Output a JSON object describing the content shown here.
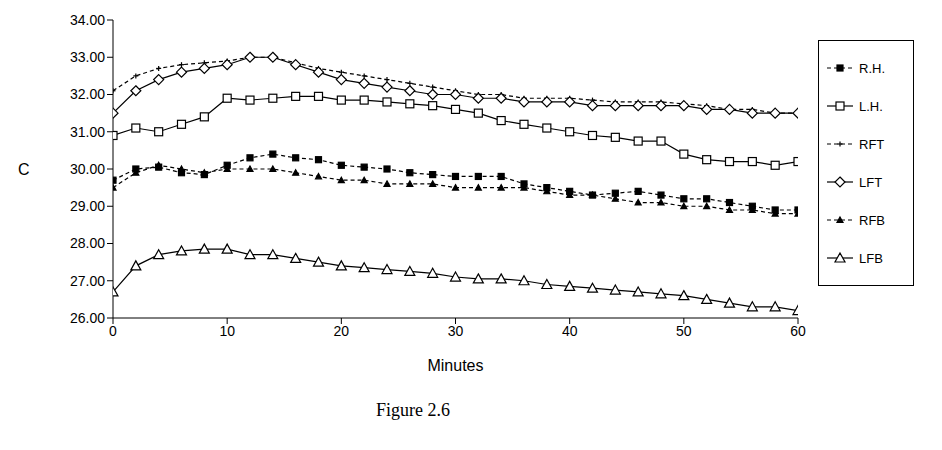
{
  "chart_data": {
    "type": "line",
    "title": "Figure 2.6",
    "x_label": "Minutes",
    "y_label": "C",
    "x": [
      0,
      2,
      4,
      6,
      8,
      10,
      12,
      14,
      16,
      18,
      20,
      22,
      24,
      26,
      28,
      30,
      32,
      34,
      36,
      38,
      40,
      42,
      44,
      46,
      48,
      50,
      52,
      54,
      56,
      58,
      60
    ],
    "xlim": [
      0,
      60
    ],
    "xticks": [
      0,
      10,
      20,
      30,
      40,
      50,
      60
    ],
    "ylim": [
      26,
      34
    ],
    "yticks": [
      {
        "value": 26,
        "label": "26.00"
      },
      {
        "value": 27,
        "label": "27.00"
      },
      {
        "value": 28,
        "label": "28.00"
      },
      {
        "value": 29,
        "label": "29.00"
      },
      {
        "value": 30,
        "label": "30.00"
      },
      {
        "value": 31,
        "label": "31.00"
      },
      {
        "value": 32,
        "label": "32.00"
      },
      {
        "value": 33,
        "label": "33.00"
      },
      {
        "value": 34,
        "label": "34.00"
      }
    ],
    "grid": false,
    "legend": "right",
    "series": [
      {
        "name": "R.H.",
        "color": "#000000",
        "marker": "filled_square",
        "line_style": "dashed",
        "values": [
          29.7,
          30.0,
          30.05,
          29.9,
          29.85,
          30.1,
          30.3,
          30.4,
          30.3,
          30.25,
          30.1,
          30.05,
          30.0,
          29.9,
          29.85,
          29.8,
          29.8,
          29.8,
          29.6,
          29.5,
          29.4,
          29.3,
          29.35,
          29.4,
          29.3,
          29.2,
          29.2,
          29.1,
          29.0,
          28.9,
          28.9
        ]
      },
      {
        "name": "L.H.",
        "color": "#000000",
        "marker": "open_square",
        "line_style": "solid",
        "values": [
          30.9,
          31.1,
          31.0,
          31.2,
          31.4,
          31.9,
          31.85,
          31.9,
          31.95,
          31.95,
          31.85,
          31.85,
          31.8,
          31.75,
          31.7,
          31.6,
          31.5,
          31.3,
          31.2,
          31.1,
          31.0,
          30.9,
          30.85,
          30.75,
          30.75,
          30.4,
          30.25,
          30.2,
          30.2,
          30.1,
          30.2
        ]
      },
      {
        "name": "RFT",
        "color": "#000000",
        "marker": "plus",
        "line_style": "dashed",
        "values": [
          32.1,
          32.5,
          32.7,
          32.8,
          32.85,
          32.9,
          33.0,
          33.0,
          32.85,
          32.7,
          32.6,
          32.5,
          32.4,
          32.3,
          32.2,
          32.1,
          32.0,
          32.0,
          31.9,
          31.9,
          31.9,
          31.85,
          31.8,
          31.8,
          31.8,
          31.75,
          31.7,
          31.6,
          31.6,
          31.5,
          31.5
        ]
      },
      {
        "name": "LFT",
        "color": "#000000",
        "marker": "open_diamond",
        "line_style": "solid",
        "values": [
          31.5,
          32.1,
          32.4,
          32.6,
          32.7,
          32.8,
          33.0,
          33.0,
          32.8,
          32.6,
          32.4,
          32.3,
          32.2,
          32.1,
          32.0,
          32.0,
          31.9,
          31.9,
          31.8,
          31.8,
          31.8,
          31.7,
          31.7,
          31.7,
          31.7,
          31.7,
          31.6,
          31.6,
          31.5,
          31.5,
          31.5
        ]
      },
      {
        "name": "RFB",
        "color": "#000000",
        "marker": "filled_triangle",
        "line_style": "dashed",
        "values": [
          29.5,
          29.9,
          30.1,
          30.0,
          29.9,
          30.0,
          30.0,
          30.0,
          29.9,
          29.8,
          29.7,
          29.7,
          29.6,
          29.6,
          29.6,
          29.5,
          29.5,
          29.5,
          29.5,
          29.4,
          29.3,
          29.3,
          29.2,
          29.1,
          29.1,
          29.0,
          29.0,
          28.9,
          28.9,
          28.8,
          28.8
        ]
      },
      {
        "name": "LFB",
        "color": "#000000",
        "marker": "open_triangle",
        "line_style": "solid",
        "values": [
          26.7,
          27.4,
          27.7,
          27.8,
          27.85,
          27.85,
          27.7,
          27.7,
          27.6,
          27.5,
          27.4,
          27.35,
          27.3,
          27.25,
          27.2,
          27.1,
          27.05,
          27.05,
          27.0,
          26.9,
          26.85,
          26.8,
          26.75,
          26.7,
          26.65,
          26.6,
          26.5,
          26.4,
          26.3,
          26.3,
          26.2
        ]
      }
    ]
  }
}
